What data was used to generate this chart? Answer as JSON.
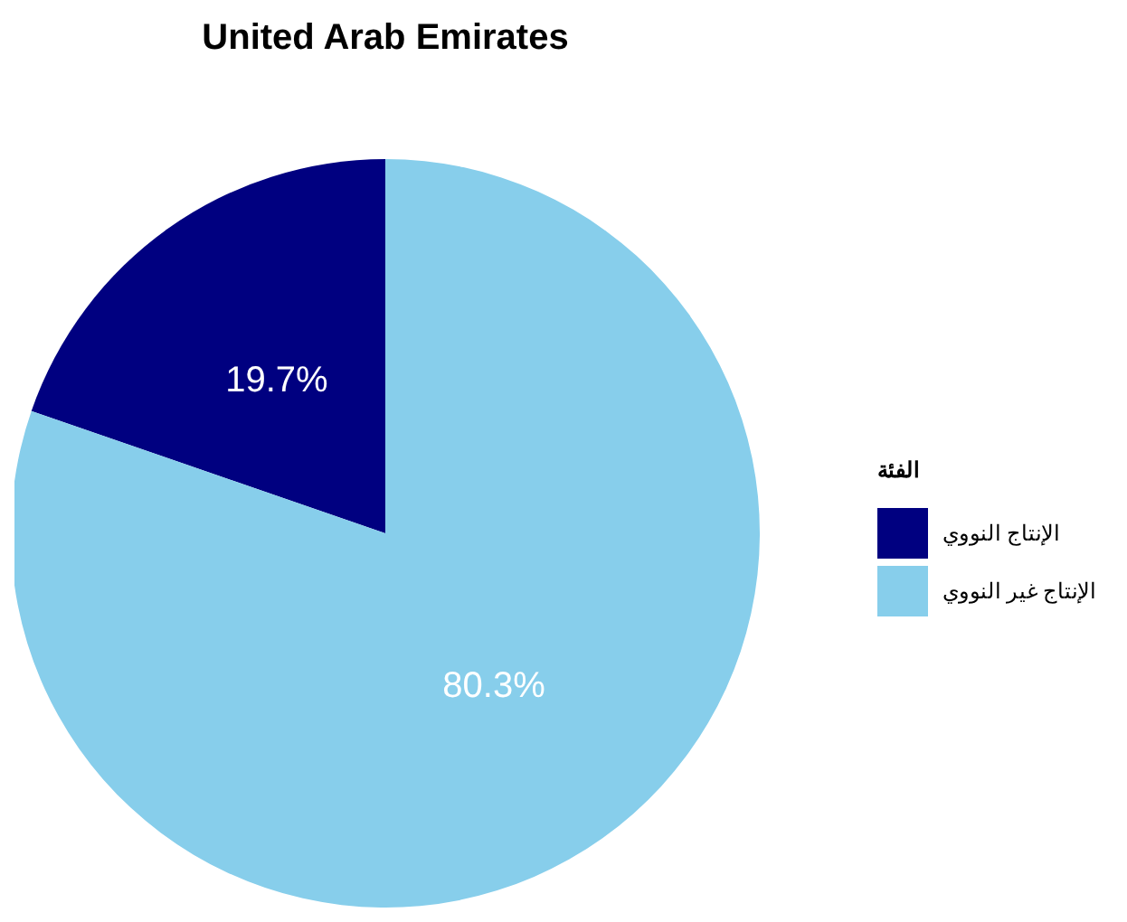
{
  "chart_data": {
    "type": "pie",
    "title": "United Arab Emirates",
    "legend_title": "الفئة",
    "categories": [
      "الإنتاج النووي",
      "الإنتاج غير النووي"
    ],
    "values": [
      19.7,
      80.3
    ],
    "colors": [
      "#000080",
      "#87ceeb"
    ],
    "value_labels": [
      "19.7%",
      "80.3%"
    ],
    "legend": "right"
  }
}
